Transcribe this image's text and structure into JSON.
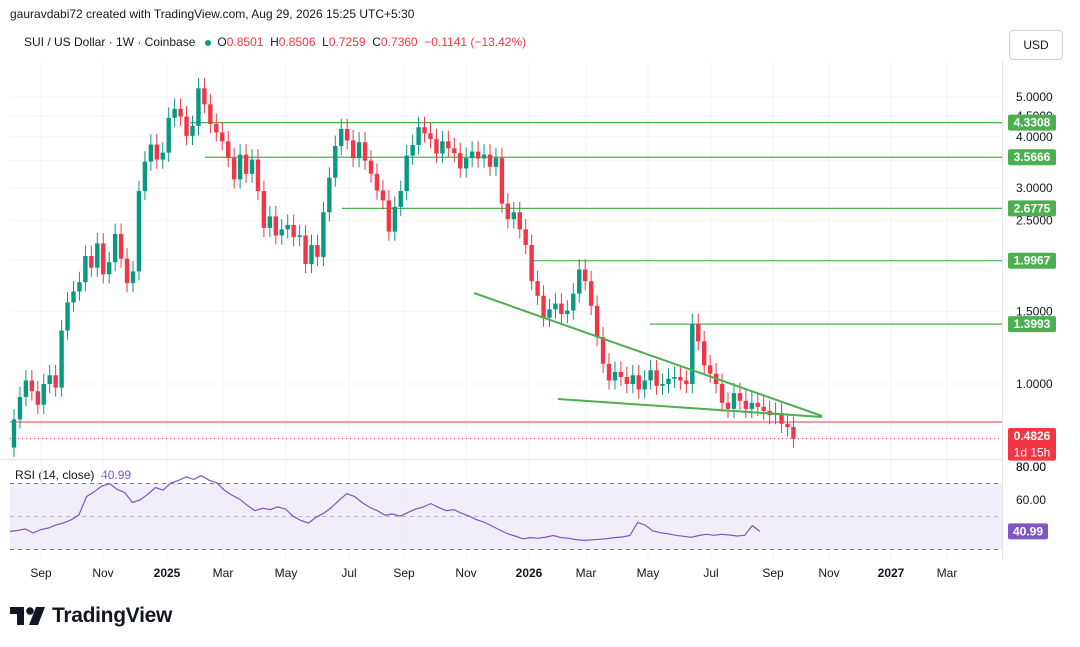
{
  "header": {
    "credit": "gauravdabi72 created with TradingView.com, Aug 29, 2026 15:25 UTC+5:30"
  },
  "legend": {
    "symbol": "SUI / US Dollar · 1W · Coinbase",
    "o_label": "O",
    "o_value": "0.8501",
    "h_label": "H",
    "h_value": "0.8506",
    "l_label": "L",
    "l_value": "0.7259",
    "c_label": "C",
    "c_value": "0.7360",
    "change": "−0.1141 (−13.42%)"
  },
  "currency_button": "USD",
  "brand": {
    "name": "TradingView"
  },
  "colors": {
    "up": "#089981",
    "down": "#f23645",
    "level": "#4caf50",
    "rsi": "#7e57c2",
    "grid": "#f0f3fa"
  },
  "chart_data": [
    {
      "type": "candlestick",
      "title": "SUI / US Dollar · 1W · Coinbase",
      "y_scale": "log",
      "y_ticks": [
        "1.0000",
        "1.5000",
        "2.0000",
        "2.5000",
        "3.0000",
        "3.5000",
        "4.0000",
        "4.5000",
        "5.0000"
      ],
      "x_ticks": [
        "Sep",
        "Nov",
        "2025",
        "Mar",
        "May",
        "Jul",
        "Sep",
        "Nov",
        "2026",
        "Mar",
        "May",
        "Jul",
        "Sep",
        "Nov",
        "2027",
        "Mar"
      ],
      "candles_close": [
        0.82,
        0.93,
        1.02,
        0.96,
        0.89,
        1.0,
        1.05,
        0.98,
        1.35,
        1.58,
        1.68,
        1.77,
        2.05,
        1.92,
        2.2,
        1.85,
        1.98,
        2.32,
        2.02,
        1.76,
        1.88,
        2.95,
        3.48,
        3.83,
        3.52,
        3.66,
        4.45,
        4.68,
        4.48,
        4.02,
        4.25,
        5.25,
        4.8,
        4.3,
        4.1,
        3.9,
        3.55,
        3.15,
        3.62,
        3.25,
        3.52,
        2.95,
        2.4,
        2.56,
        2.3,
        2.38,
        2.44,
        2.28,
        2.3,
        1.96,
        2.18,
        2.04,
        2.62,
        3.18,
        3.8,
        4.18,
        3.92,
        3.55,
        3.88,
        3.5,
        3.25,
        2.96,
        2.8,
        2.35,
        2.7,
        2.95,
        3.6,
        3.82,
        4.22,
        4.08,
        3.95,
        3.64,
        3.9,
        3.75,
        3.65,
        3.35,
        3.55,
        3.68,
        3.54,
        3.62,
        3.38,
        3.55,
        2.75,
        2.52,
        2.62,
        2.38,
        2.18,
        1.78,
        1.64,
        1.45,
        1.52,
        1.57,
        1.48,
        1.51,
        1.66,
        1.9,
        1.78,
        1.55,
        1.3,
        1.12,
        1.02,
        1.07,
        1.04,
        1.0,
        1.05,
        0.97,
        1.02,
        1.08,
        0.99,
        1.0,
        1.03,
        1.04,
        1.02,
        1.0,
        1.4,
        1.27,
        1.11,
        1.06,
        1.0,
        0.9,
        0.87,
        0.95,
        0.91,
        0.87,
        0.9,
        0.88,
        0.86,
        0.84,
        0.85,
        0.8,
        0.7855,
        0.736
      ],
      "horizontal_levels": [
        4.3308,
        3.5666,
        2.6775,
        1.9967,
        1.3993
      ],
      "current_price": 0.736,
      "countdown": "1d 15h",
      "low_level": 0.4826,
      "price_labels": [
        "4.3308",
        "3.5666",
        "2.6775",
        "1.9967",
        "1.3993",
        "0.7360",
        "0.4826"
      ],
      "trendlines": [
        {
          "name": "",
          "points": [
            [
              1.8,
              2.2
            ],
            [
              0.59,
              0.59
            ]
          ]
        },
        {
          "name": "",
          "points": [
            [
              0.84,
              0.84
            ],
            [
              0.59,
              0.59
            ]
          ]
        }
      ]
    },
    {
      "type": "line",
      "title": "RSI (14, close)",
      "value_label": "40.99",
      "y_ticks": [
        "60.00",
        "80.00"
      ],
      "bands": [
        70,
        50,
        30
      ],
      "values": [
        40.99,
        41.5,
        42.5,
        40.0,
        42.0,
        43.0,
        44.8,
        46.2,
        48.0,
        51.0,
        62.0,
        65.0,
        68.5,
        70.0,
        66.5,
        64.5,
        58.5,
        60.0,
        63.5,
        67.5,
        66.0,
        70.2,
        71.8,
        74.0,
        72.5,
        74.8,
        72.0,
        70.5,
        66.0,
        63.0,
        60.5,
        56.8,
        53.5,
        55.0,
        54.2,
        55.8,
        54.5,
        50.2,
        47.6,
        46.0,
        49.5,
        52.0,
        55.5,
        59.8,
        63.8,
        62.2,
        58.5,
        55.5,
        53.5,
        50.8,
        51.5,
        50.2,
        52.5,
        54.5,
        55.8,
        57.8,
        55.5,
        53.5,
        54.2,
        52.0,
        50.2,
        48.0,
        46.5,
        44.2,
        41.8,
        39.6,
        38.2,
        36.5,
        37.2,
        36.8,
        37.5,
        38.5,
        37.2,
        36.8,
        36.0,
        35.5,
        35.8,
        36.2,
        36.6,
        37.2,
        37.6,
        38.5,
        46.5,
        44.8,
        41.2,
        40.2,
        39.5,
        38.6,
        38.0,
        37.4,
        38.5,
        39.2,
        38.6,
        39.2,
        38.8,
        38.2,
        38.6,
        44.5,
        40.99
      ]
    }
  ]
}
